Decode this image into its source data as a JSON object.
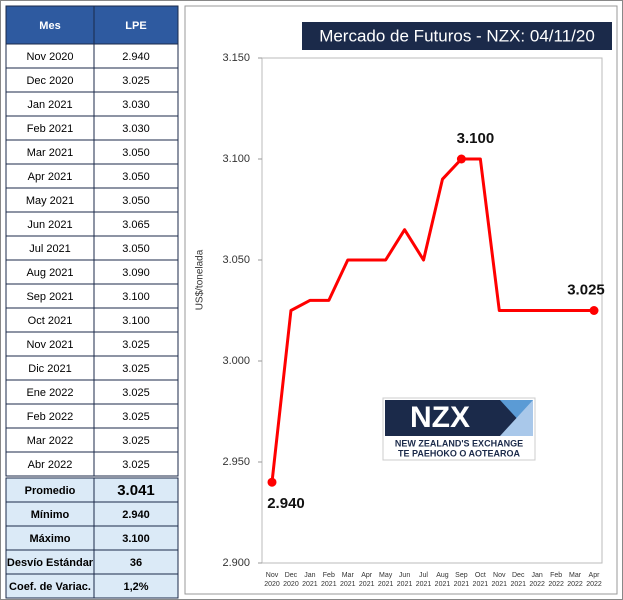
{
  "table": {
    "header": [
      "Mes",
      "LPE"
    ],
    "rows": [
      [
        "Nov 2020",
        "2.940"
      ],
      [
        "Dec 2020",
        "3.025"
      ],
      [
        "Jan 2021",
        "3.030"
      ],
      [
        "Feb 2021",
        "3.030"
      ],
      [
        "Mar 2021",
        "3.050"
      ],
      [
        "Apr 2021",
        "3.050"
      ],
      [
        "May 2021",
        "3.050"
      ],
      [
        "Jun 2021",
        "3.065"
      ],
      [
        "Jul 2021",
        "3.050"
      ],
      [
        "Aug 2021",
        "3.090"
      ],
      [
        "Sep 2021",
        "3.100"
      ],
      [
        "Oct 2021",
        "3.100"
      ],
      [
        "Nov 2021",
        "3.025"
      ],
      [
        "Dic 2021",
        "3.025"
      ],
      [
        "Ene 2022",
        "3.025"
      ],
      [
        "Feb 2022",
        "3.025"
      ],
      [
        "Mar 2022",
        "3.025"
      ],
      [
        "Abr 2022",
        "3.025"
      ]
    ],
    "stats": [
      [
        "Promedio",
        "3.041"
      ],
      [
        "Mínimo",
        "2.940"
      ],
      [
        "Máximo",
        "3.100"
      ],
      [
        "Desvío Estándar",
        "36"
      ],
      [
        "Coef. de Variac.",
        "1,2%"
      ]
    ]
  },
  "chart_data": {
    "type": "line",
    "title": "Mercado de Futuros - NZX: 04/11/20",
    "y_label": "US$/tonelada",
    "categories": [
      "Nov 2020",
      "Dec 2020",
      "Jan 2021",
      "Feb 2021",
      "Mar 2021",
      "Apr 2021",
      "May 2021",
      "Jun 2021",
      "Jul 2021",
      "Aug 2021",
      "Sep 2021",
      "Oct 2021",
      "Nov 2021",
      "Dec 2021",
      "Jan 2022",
      "Feb 2022",
      "Mar 2022",
      "Apr 2022"
    ],
    "values": [
      2.94,
      3.025,
      3.03,
      3.03,
      3.05,
      3.05,
      3.05,
      3.065,
      3.05,
      3.09,
      3.1,
      3.1,
      3.025,
      3.025,
      3.025,
      3.025,
      3.025,
      3.025
    ],
    "value_labels": [
      "2.940",
      null,
      null,
      null,
      null,
      null,
      null,
      null,
      null,
      null,
      "3.100",
      null,
      null,
      null,
      null,
      null,
      null,
      "3.025"
    ],
    "color": "#ff0000",
    "ylim": [
      2.9,
      3.15
    ],
    "yticks": [
      {
        "value": 2.9,
        "label": "2.900"
      },
      {
        "value": 2.95,
        "label": "2.950"
      },
      {
        "value": 3.0,
        "label": "3.000"
      },
      {
        "value": 3.05,
        "label": "3.050"
      },
      {
        "value": 3.1,
        "label": "3.100"
      },
      {
        "value": 3.15,
        "label": "3.150"
      }
    ]
  },
  "logo": {
    "mark": "NZX",
    "line1": "NEW ZEALAND'S EXCHANGE",
    "line2": "TE PAEHOKO O AOTEAROA"
  }
}
